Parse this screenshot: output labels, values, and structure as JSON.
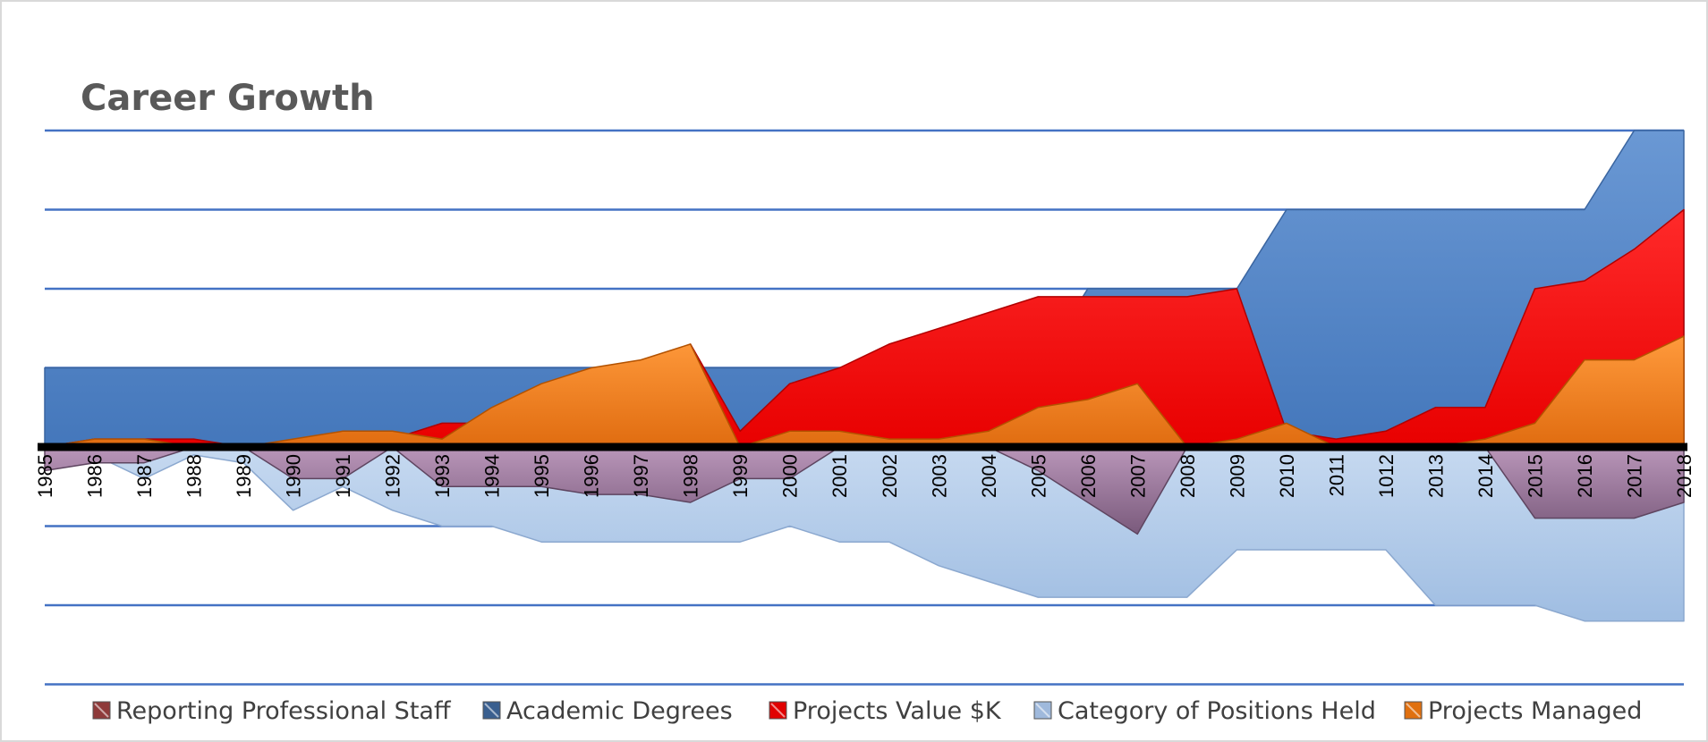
{
  "chart_data": {
    "type": "area",
    "title": "Career Growth",
    "xlabel": "",
    "ylabel": "",
    "grid": true,
    "legend_position": "bottom",
    "categories": [
      "1985",
      "1986",
      "1987",
      "1988",
      "1989",
      "1990",
      "1991",
      "1992",
      "1993",
      "1994",
      "1995",
      "1996",
      "1997",
      "1998",
      "1999",
      "2000",
      "2001",
      "2002",
      "2003",
      "2004",
      "2005",
      "2006",
      "2007",
      "2008",
      "2009",
      "2010",
      "2011",
      "1012",
      "2013",
      "2014",
      "2015",
      "2016",
      "2017",
      "2018"
    ],
    "series": [
      {
        "name": "Academic Degrees",
        "color": "#4f81bd",
        "values": [
          1,
          1,
          1,
          1,
          1,
          1,
          1,
          1,
          1,
          1,
          1,
          1,
          1,
          1,
          1,
          1,
          1,
          1,
          1,
          1,
          1,
          2,
          2,
          2,
          2,
          3,
          3,
          3,
          3,
          3,
          3,
          3,
          4,
          4
        ]
      },
      {
        "name": "Projects Value $K",
        "color": "#ff0000",
        "values": [
          0,
          0.1,
          0.1,
          0.1,
          0,
          0,
          0,
          0.1,
          0.3,
          0.3,
          0.5,
          0.6,
          0.7,
          1.3,
          0.2,
          0.8,
          1,
          1.3,
          1.5,
          1.7,
          1.9,
          1.9,
          1.9,
          1.9,
          2,
          0.2,
          0.1,
          0.2,
          0.5,
          0.5,
          2,
          2.1,
          2.5,
          3
        ]
      },
      {
        "name": "Projects Managed",
        "color": "#f07c16",
        "values": [
          0,
          0.1,
          0.1,
          0,
          0,
          0.1,
          0.2,
          0.2,
          0.1,
          0.5,
          0.8,
          1,
          1.1,
          1.3,
          0,
          0.2,
          0.2,
          0.1,
          0.1,
          0.2,
          0.5,
          0.6,
          0.8,
          0,
          0.1,
          0.3,
          0,
          0,
          0,
          0.1,
          0.3,
          1.1,
          1.1,
          1.4
        ]
      },
      {
        "name": "Category of Positions Held",
        "color": "#a8c4e5",
        "values": [
          0,
          -0.1,
          -0.4,
          -0.1,
          -0.2,
          -0.8,
          -0.5,
          -0.8,
          -1,
          -1,
          -1.2,
          -1.2,
          -1.2,
          -1.2,
          -1.2,
          -1,
          -1.2,
          -1.2,
          -1.5,
          -1.7,
          -1.9,
          -1.9,
          -1.9,
          -1.9,
          -1.3,
          -1.3,
          -1.3,
          -1.3,
          -2,
          -2,
          -2,
          -2.2,
          -2.2,
          -2.2
        ]
      },
      {
        "name": "Reporting Professional Staff",
        "color": "#8e6b8e",
        "values": [
          -0.3,
          -0.2,
          -0.2,
          0,
          0,
          -0.4,
          -0.4,
          0,
          -0.5,
          -0.5,
          -0.5,
          -0.6,
          -0.6,
          -0.7,
          -0.4,
          -0.4,
          0,
          0,
          0,
          0,
          -0.3,
          -0.7,
          -1.1,
          0,
          0,
          0,
          0,
          0,
          0,
          0,
          -0.9,
          -0.9,
          -0.9,
          -0.7
        ]
      }
    ],
    "ylim": [
      -3,
      4
    ]
  },
  "legend": [
    {
      "label": "Reporting Professional Staff",
      "color": "#8e3a3a"
    },
    {
      "label": "Academic Degrees",
      "color": "#3a5f8f"
    },
    {
      "label": "Projects Value $K",
      "color": "#e00000"
    },
    {
      "label": "Category of Positions Held",
      "color": "#9fb9dc"
    },
    {
      "label": "Projects Managed",
      "color": "#e0700f"
    }
  ]
}
